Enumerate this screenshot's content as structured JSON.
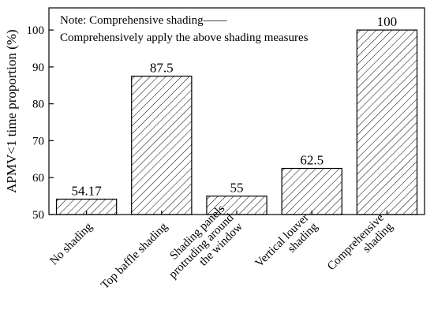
{
  "chart_data": {
    "type": "bar",
    "ylabel": "APMV<1 time proportion (%)",
    "annotation": [
      "Note: Comprehensive shading——",
      "Comprehensively apply the above shading measures"
    ],
    "categories": [
      [
        "No shading"
      ],
      [
        "Top baffle shading"
      ],
      [
        "Shading panels",
        "protruding around",
        "the window"
      ],
      [
        "Vertical louver",
        "shading"
      ],
      [
        "Comprehensive",
        "shading"
      ]
    ],
    "values": [
      54.17,
      87.5,
      55,
      62.5,
      100
    ],
    "color": "#000000",
    "ylim": [
      50,
      106
    ],
    "yticks": [
      50,
      60,
      70,
      80,
      90,
      100
    ]
  }
}
